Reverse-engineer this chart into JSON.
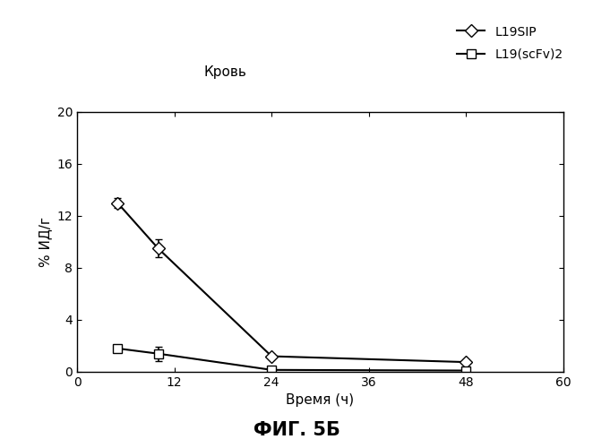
{
  "title_inner": "Кровь",
  "xlabel": "Время (ч)",
  "ylabel": "% ИД/г",
  "fig_label": "ФИГ. 5Б",
  "xlim": [
    0,
    60
  ],
  "ylim": [
    0,
    20
  ],
  "xticks": [
    0,
    12,
    24,
    36,
    48,
    60
  ],
  "yticks": [
    0,
    4,
    8,
    12,
    16,
    20
  ],
  "series": [
    {
      "label": "L19SIP",
      "x": [
        5,
        10,
        24,
        48
      ],
      "y": [
        13.0,
        9.5,
        1.2,
        0.75
      ],
      "yerr": [
        0.4,
        0.7,
        0.15,
        0.1
      ],
      "marker": "D",
      "color": "#000000",
      "linestyle": "-",
      "markersize": 7,
      "markerfacecolor": "white"
    },
    {
      "label": "L19(scFv)2",
      "x": [
        5,
        10,
        24,
        48
      ],
      "y": [
        1.8,
        1.4,
        0.15,
        0.1
      ],
      "yerr": [
        0.25,
        0.55,
        0.08,
        0.05
      ],
      "marker": "s",
      "color": "#000000",
      "linestyle": "-",
      "markersize": 7,
      "markerfacecolor": "white"
    }
  ],
  "background_color": "#ffffff",
  "plot_bg_color": "#ffffff",
  "label_fontsize": 11,
  "tick_fontsize": 10,
  "legend_fontsize": 10,
  "title_fontsize": 11,
  "fig_label_fontsize": 15
}
